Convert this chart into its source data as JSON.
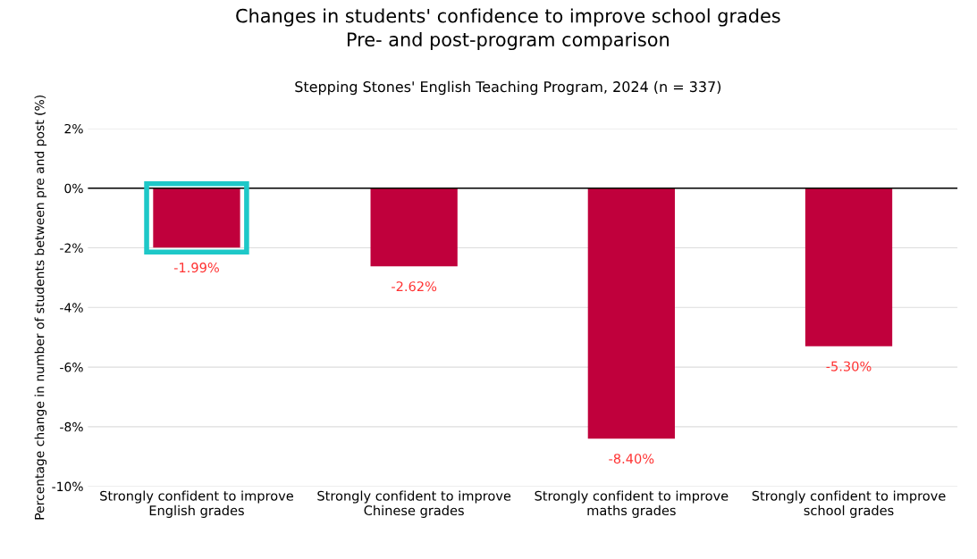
{
  "chart_data": {
    "type": "bar",
    "title": "Changes in students' confidence to improve school grades\nPre- and post-program comparison",
    "subtitle": "Stepping Stones' English Teaching Program, 2024 (n = 337)",
    "ylabel": "Percentage change in number of students between pre and post (%)",
    "categories": [
      "Strongly confident to improve\nEnglish grades",
      "Strongly confident to improve\nChinese grades",
      "Strongly confident to improve\nmaths grades",
      "Strongly confident to improve\nschool grades"
    ],
    "values": [
      -1.99,
      -2.62,
      -8.4,
      -5.3
    ],
    "value_labels": [
      "-1.99%",
      "-2.62%",
      "-8.40%",
      "-5.30%"
    ],
    "color": "#c0003c",
    "ylim": [
      -10,
      2
    ],
    "yticks": [
      {
        "value": -10,
        "label": "-10%"
      },
      {
        "value": -8,
        "label": "-8%"
      },
      {
        "value": -6,
        "label": "-6%"
      },
      {
        "value": -4,
        "label": "-4%"
      },
      {
        "value": -2,
        "label": "-2%"
      },
      {
        "value": 0,
        "label": "0%"
      },
      {
        "value": 2,
        "label": "2%"
      }
    ],
    "grid": "y",
    "ref_lines": [
      {
        "axis": "y",
        "value": 0,
        "color": "#000000"
      }
    ]
  }
}
